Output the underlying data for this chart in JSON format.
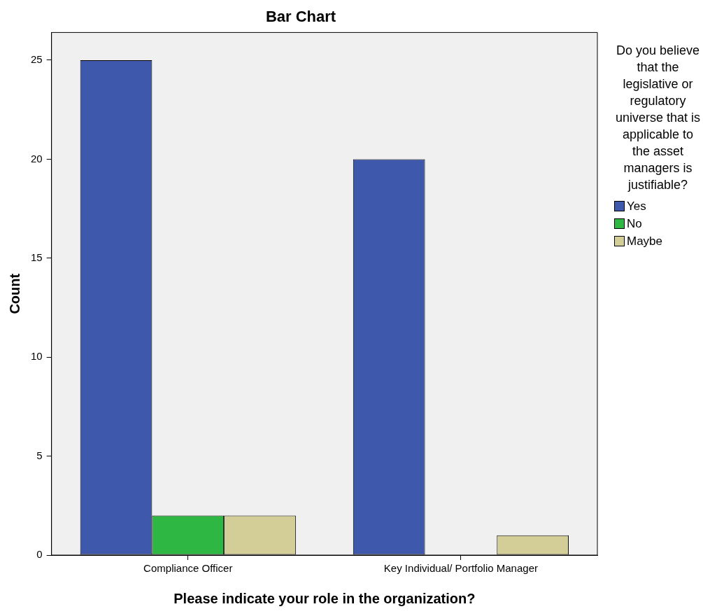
{
  "chart_data": {
    "type": "bar",
    "title": "Bar Chart",
    "xlabel": "Please indicate your role in the organization?",
    "ylabel": "Count",
    "legend_title": "Do you believe that the legislative or regulatory universe that is applicable to the asset managers is justifiable?",
    "categories": [
      "Compliance Officer",
      "Key Individual/ Portfolio Manager"
    ],
    "series": [
      {
        "name": "Yes",
        "color": "#3e58ac",
        "values": [
          25,
          20
        ]
      },
      {
        "name": "No",
        "color": "#2eb843",
        "values": [
          2,
          0
        ]
      },
      {
        "name": "Maybe",
        "color": "#d3cd98",
        "values": [
          2,
          1
        ]
      }
    ],
    "ylim": [
      0,
      26.4
    ],
    "yticks": [
      0,
      5,
      10,
      15,
      20,
      25
    ],
    "grid": false,
    "legend": "right"
  }
}
